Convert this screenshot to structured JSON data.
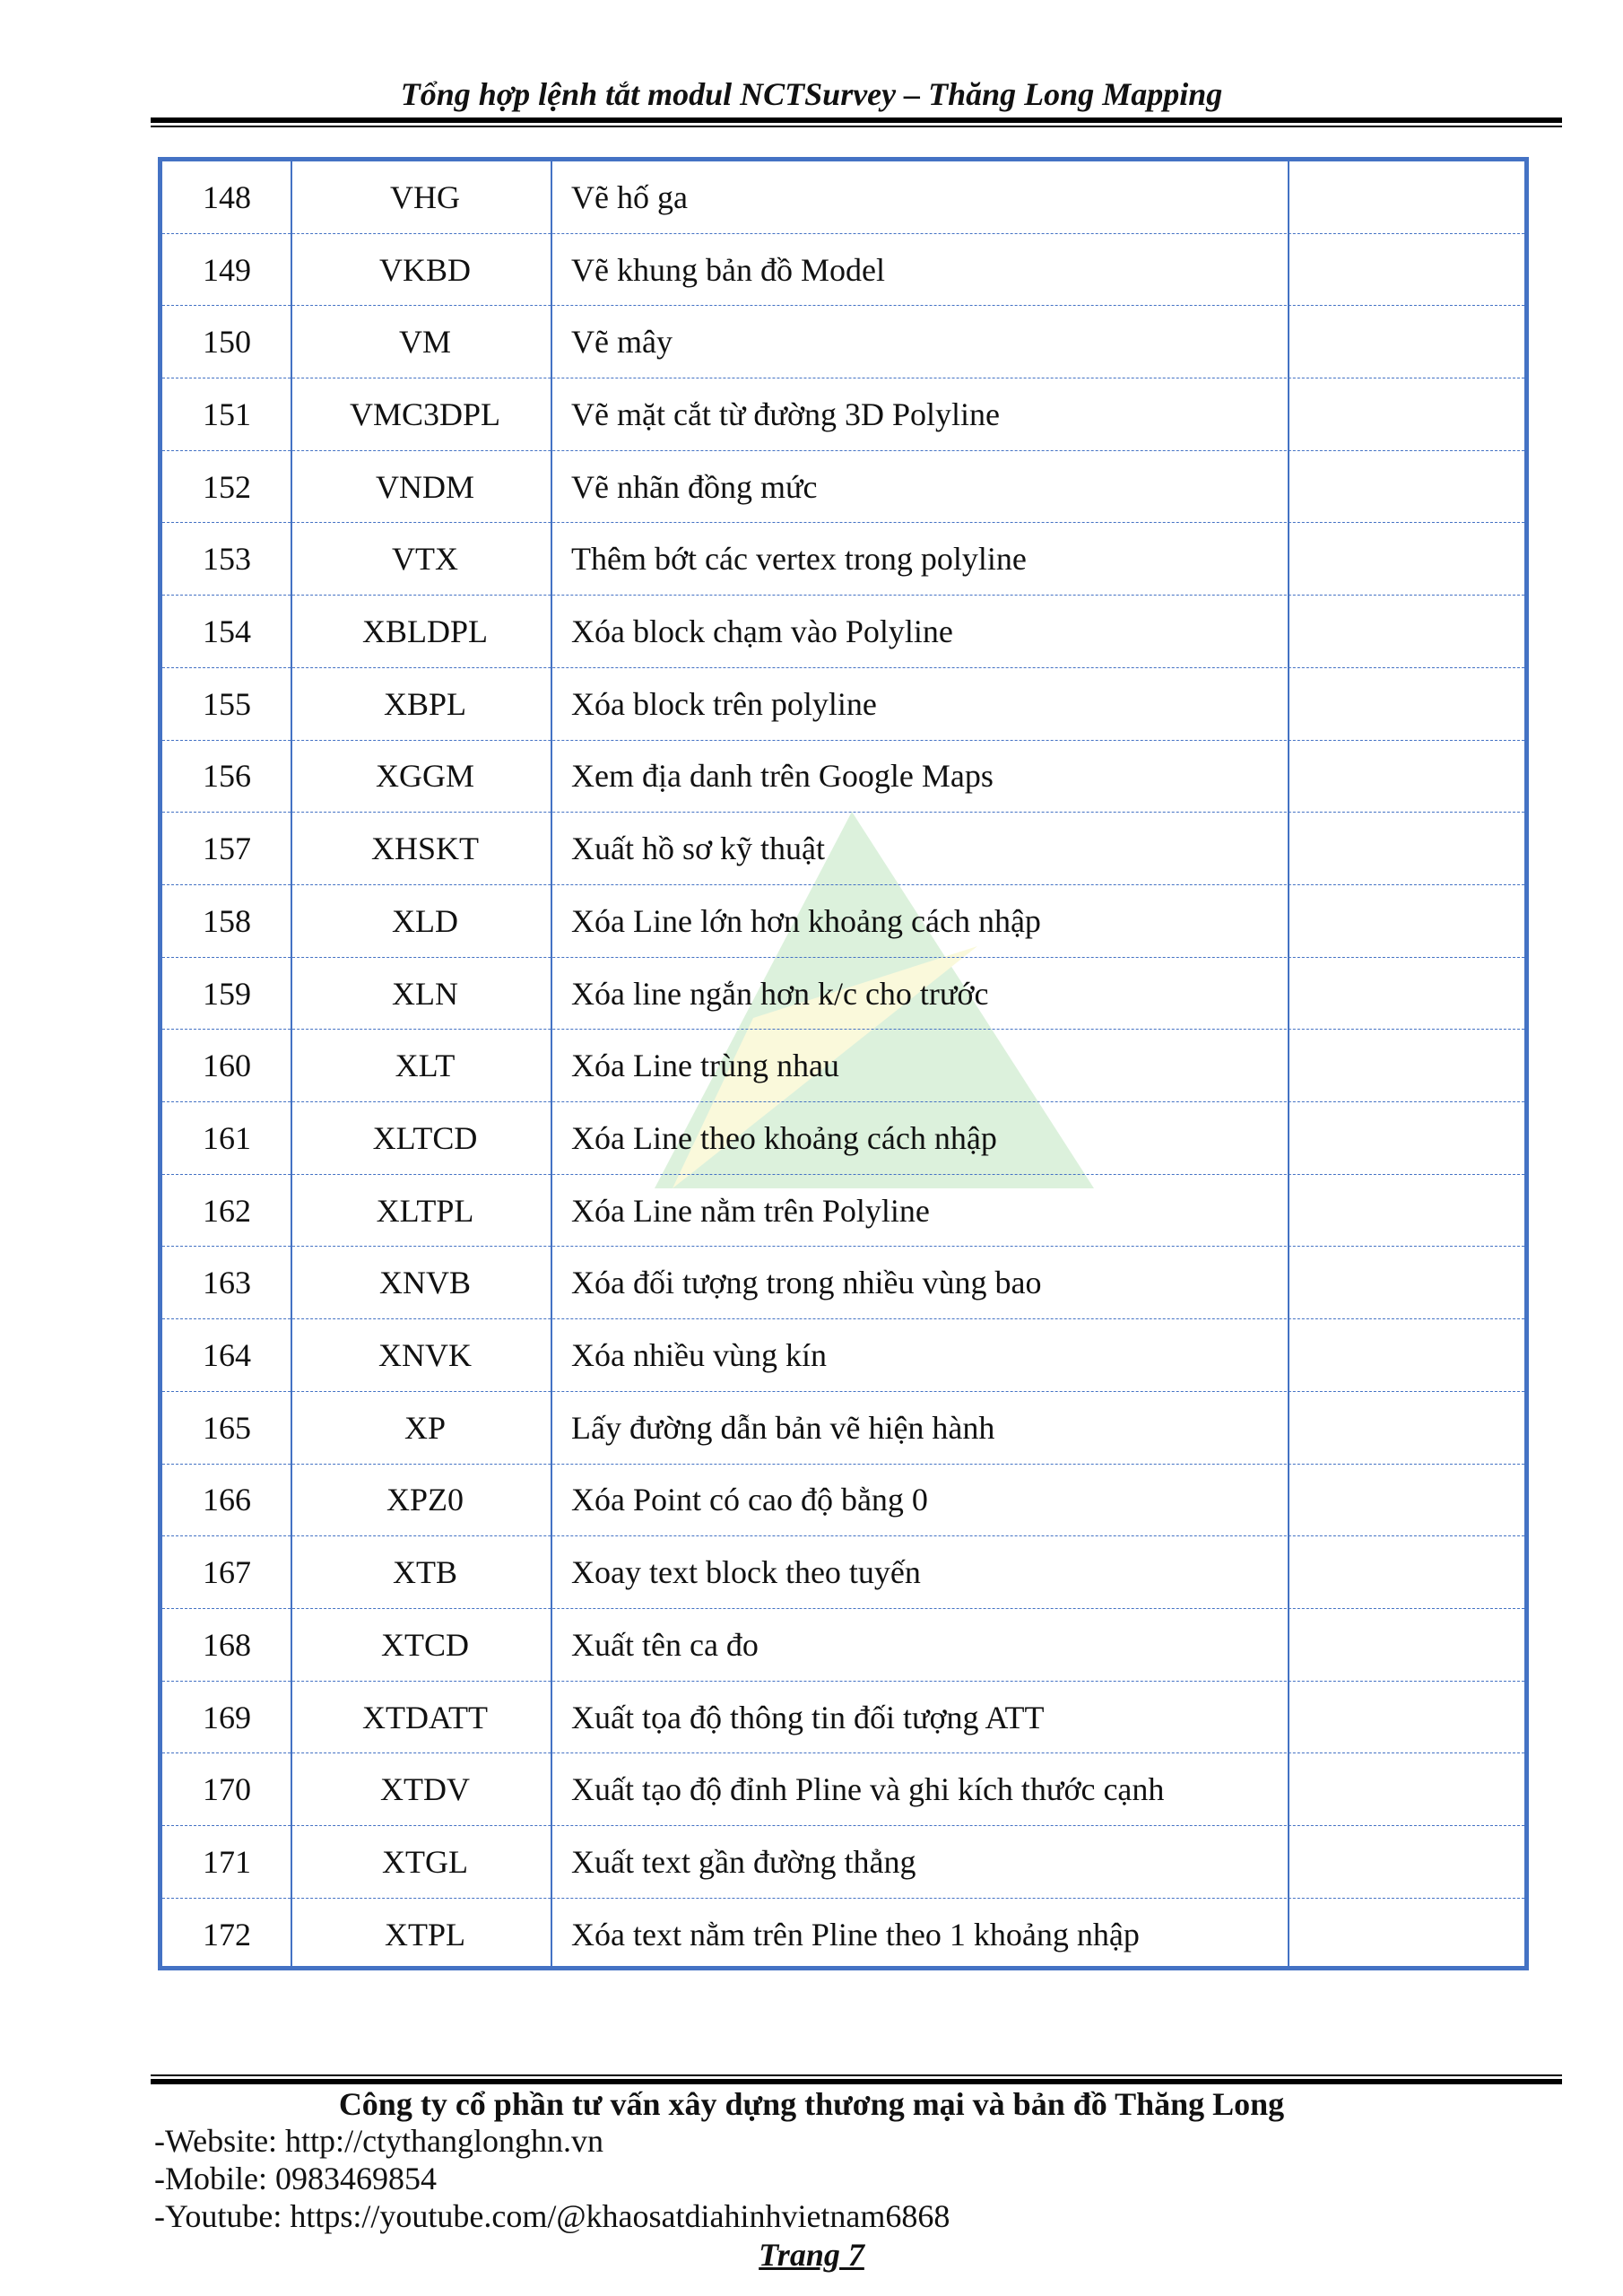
{
  "header": {
    "title": "Tổng hợp lệnh tắt modul NCTSurvey – Thăng Long Mapping"
  },
  "table": {
    "rows": [
      {
        "no": "148",
        "code": "VHG",
        "desc": "Vẽ hố ga",
        "note": ""
      },
      {
        "no": "149",
        "code": "VKBD",
        "desc": "Vẽ khung bản đồ Model",
        "note": ""
      },
      {
        "no": "150",
        "code": "VM",
        "desc": "Vẽ mây",
        "note": ""
      },
      {
        "no": "151",
        "code": "VMC3DPL",
        "desc": "Vẽ mặt cắt từ đường 3D Polyline",
        "note": ""
      },
      {
        "no": "152",
        "code": "VNDM",
        "desc": "Vẽ nhãn đồng mức",
        "note": ""
      },
      {
        "no": "153",
        "code": "VTX",
        "desc": "Thêm bớt các vertex trong polyline",
        "note": ""
      },
      {
        "no": "154",
        "code": "XBLDPL",
        "desc": "Xóa block chạm vào Polyline",
        "note": ""
      },
      {
        "no": "155",
        "code": "XBPL",
        "desc": "Xóa block trên polyline",
        "note": ""
      },
      {
        "no": "156",
        "code": "XGGM",
        "desc": "Xem địa danh trên Google Maps",
        "note": ""
      },
      {
        "no": "157",
        "code": "XHSKT",
        "desc": "Xuất hồ sơ kỹ thuật",
        "note": ""
      },
      {
        "no": "158",
        "code": "XLD",
        "desc": "Xóa Line lớn hơn khoảng cách nhập",
        "note": ""
      },
      {
        "no": "159",
        "code": "XLN",
        "desc": "Xóa line ngắn hơn k/c cho trước",
        "note": ""
      },
      {
        "no": "160",
        "code": "XLT",
        "desc": "Xóa Line trùng nhau",
        "note": ""
      },
      {
        "no": "161",
        "code": "XLTCD",
        "desc": "Xóa Line theo khoảng cách nhập",
        "note": ""
      },
      {
        "no": "162",
        "code": "XLTPL",
        "desc": "Xóa Line nằm trên Polyline",
        "note": ""
      },
      {
        "no": "163",
        "code": "XNVB",
        "desc": "Xóa đối tượng trong nhiều vùng bao",
        "note": ""
      },
      {
        "no": "164",
        "code": "XNVK",
        "desc": "Xóa nhiều vùng kín",
        "note": ""
      },
      {
        "no": "165",
        "code": "XP",
        "desc": "Lấy đường dẫn bản vẽ hiện hành",
        "note": ""
      },
      {
        "no": "166",
        "code": "XPZ0",
        "desc": "Xóa Point có cao độ bằng 0",
        "note": ""
      },
      {
        "no": "167",
        "code": "XTB",
        "desc": "Xoay text block theo tuyến",
        "note": ""
      },
      {
        "no": "168",
        "code": "XTCD",
        "desc": "Xuất tên ca đo",
        "note": ""
      },
      {
        "no": "169",
        "code": "XTDATT",
        "desc": "Xuất tọa độ thông tin đối tượng ATT",
        "note": ""
      },
      {
        "no": "170",
        "code": "XTDV",
        "desc": "Xuất tạo độ đỉnh Pline và ghi kích thước cạnh",
        "note": ""
      },
      {
        "no": "171",
        "code": "XTGL",
        "desc": "Xuất text gần đường thẳng",
        "note": ""
      },
      {
        "no": "172",
        "code": "XTPL",
        "desc": "Xóa text nằm trên Pline theo 1 khoảng nhập",
        "note": ""
      }
    ],
    "border_color": "#4472c4"
  },
  "footer": {
    "company": "Công ty cổ phần tư vấn xây dựng thương mại và bản đồ Thăng Long",
    "website": "-Website: http://ctythanglonghn.vn",
    "mobile": "-Mobile: 0983469854",
    "youtube": "-Youtube: https://youtube.com/@khaosatdiahinhvietnam6868",
    "page": "Trang 7"
  }
}
